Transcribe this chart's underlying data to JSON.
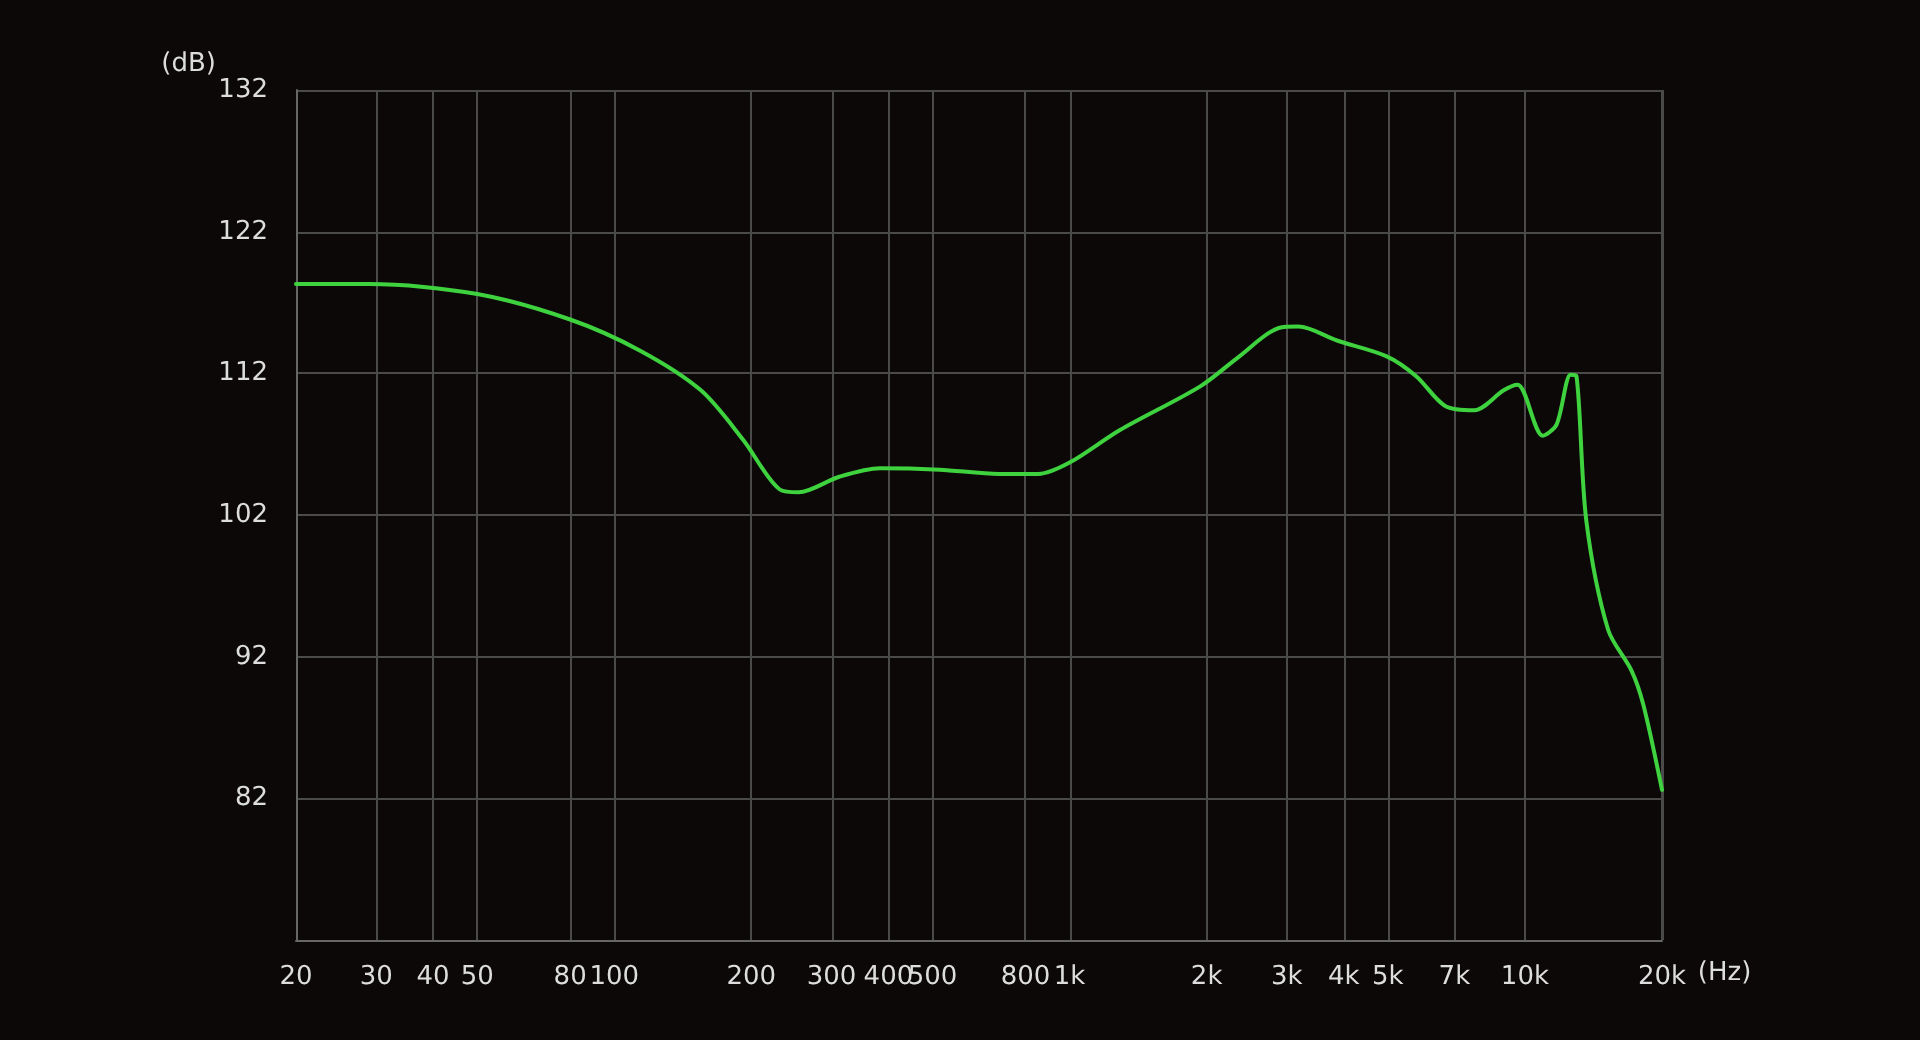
{
  "chart_data": {
    "type": "line",
    "xlabel": "(Hz)",
    "ylabel": "(dB)",
    "log": "x",
    "grid": true,
    "marker": "none",
    "line_style": "solid",
    "xlim": [
      20,
      20000
    ],
    "ylim": [
      72,
      132
    ],
    "xticks": [
      20,
      30,
      40,
      50,
      80,
      100,
      200,
      300,
      400,
      500,
      800,
      {
        "value": 1000,
        "label": "1k"
      },
      {
        "value": 2000,
        "label": "2k"
      },
      {
        "value": 3000,
        "label": "3k"
      },
      {
        "value": 4000,
        "label": "4k"
      },
      {
        "value": 5000,
        "label": "5k"
      },
      {
        "value": 7000,
        "label": "7k"
      },
      {
        "value": 10000,
        "label": "10k"
      },
      {
        "value": 20000,
        "label": "20k"
      }
    ],
    "yticks": [
      {
        "value": 72,
        "label": null
      },
      82,
      92,
      102,
      112,
      122,
      132
    ],
    "x": [
      20,
      29,
      50,
      80,
      114,
      155,
      192,
      231,
      254,
      312,
      383,
      518,
      700,
      854,
      1000,
      1290,
      1940,
      2360,
      2880,
      3180,
      3880,
      4970,
      5770,
      6680,
      7740,
      8980,
      9630,
      10950,
      11740,
      12600,
      12980,
      13640,
      15230,
      17150,
      18200,
      20000
    ],
    "series": [
      {
        "color": "#3fd23f",
        "values": [
          118.3,
          118.3,
          117.6,
          115.8,
          113.6,
          110.8,
          107.3,
          103.8,
          103.6,
          104.7,
          105.3,
          105.2,
          104.9,
          104.9,
          105.7,
          108.0,
          111.1,
          113.2,
          115.2,
          115.3,
          114.3,
          113.2,
          111.8,
          109.7,
          109.4,
          110.8,
          111.2,
          107.6,
          108.4,
          111.9,
          111.8,
          101.6,
          93.9,
          91.0,
          88.6,
          82.6
        ]
      }
    ]
  }
}
